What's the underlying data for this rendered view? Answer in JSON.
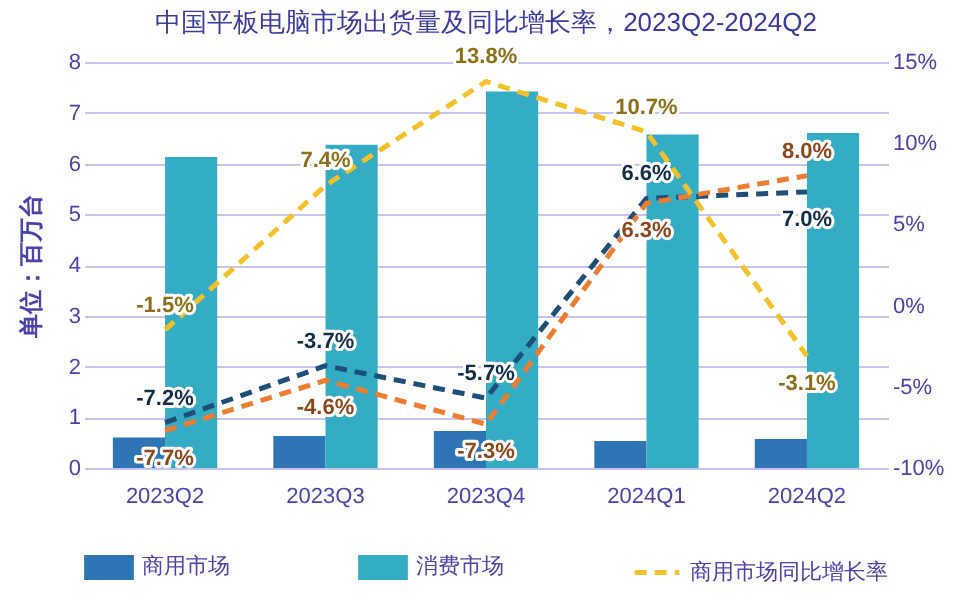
{
  "chart_data": {
    "type": "bar",
    "title": "中国平板电脑市场出货量及同比增长率，2023Q2-2024Q2",
    "ylabel": "单位：百万台",
    "categories": [
      "2023Q2",
      "2023Q3",
      "2023Q4",
      "2024Q1",
      "2024Q2"
    ],
    "series": [
      {
        "name": "商用市场",
        "type": "bar",
        "color": "#2e75b6",
        "values": [
          0.6,
          0.63,
          0.73,
          0.53,
          0.57
        ]
      },
      {
        "name": "消费市场",
        "type": "bar",
        "color": "#34adc4",
        "values": [
          6.13,
          6.37,
          7.42,
          6.57,
          6.6
        ]
      },
      {
        "type": "line",
        "axis": "y2",
        "color": "#1f4e79",
        "line_style": "dashed",
        "values": [
          -7.2,
          -3.7,
          -5.7,
          6.6,
          7.0
        ],
        "value_labels": [
          "-7.2%",
          "-3.7%",
          "-5.7%",
          "6.6%",
          "7.0%"
        ]
      },
      {
        "type": "line",
        "axis": "y2",
        "color": "#ed7d31",
        "line_style": "dashed",
        "values": [
          -7.7,
          -4.6,
          -7.3,
          6.3,
          8.0
        ],
        "value_labels": [
          "-7.7%",
          "-4.6%",
          "-7.3%",
          "6.3%",
          "8.0%"
        ]
      },
      {
        "name": "商用市场同比增长率",
        "type": "line",
        "axis": "y2",
        "color": "#f5c02a",
        "line_style": "dashed",
        "values": [
          -1.5,
          7.4,
          13.8,
          10.7,
          -3.1
        ],
        "value_labels": [
          "-1.5%",
          "7.4%",
          "13.8%",
          "10.7%",
          "-3.1%"
        ]
      }
    ],
    "ylim": [
      0,
      8
    ],
    "yticks": [
      0,
      1,
      2,
      3,
      4,
      5,
      6,
      7,
      8
    ],
    "y2lim": [
      -10,
      15
    ],
    "y2ticks": [
      {
        "value": -10,
        "label": "-10%"
      },
      {
        "value": -5,
        "label": "-5%"
      },
      {
        "value": 0,
        "label": "0%"
      },
      {
        "value": 5,
        "label": "5%"
      },
      {
        "value": 10,
        "label": "10%"
      },
      {
        "value": 15,
        "label": "15%"
      }
    ],
    "grid": "y",
    "legend": "bottom"
  }
}
